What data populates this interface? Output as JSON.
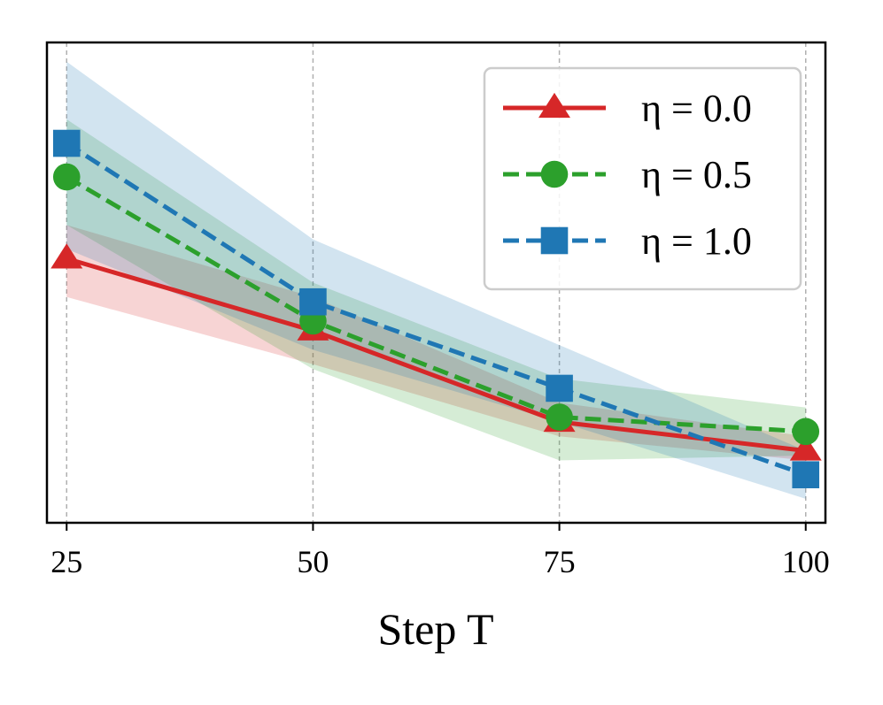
{
  "chart_data": {
    "type": "line",
    "title": "",
    "xlabel": "Step T",
    "ylabel": "",
    "x": [
      25,
      50,
      75,
      100
    ],
    "x_tick_labels": [
      "25",
      "50",
      "75",
      "100"
    ],
    "xlim": [
      23,
      102
    ],
    "ylim": [
      0,
      10
    ],
    "y_ticks_shown": false,
    "grid": "vertical-dashed",
    "legend_position": "upper-right",
    "series": [
      {
        "name": "η = 0.0",
        "color": "#d62728",
        "linestyle": "solid",
        "marker": "triangle",
        "values": [
          5.5,
          4.0,
          2.1,
          1.5
        ],
        "lower": [
          4.7,
          3.3,
          1.8,
          1.3
        ],
        "upper": [
          6.2,
          4.7,
          2.5,
          1.8
        ]
      },
      {
        "name": "η = 0.5",
        "color": "#2ca02c",
        "linestyle": "dashed",
        "marker": "circle",
        "values": [
          7.2,
          4.2,
          2.2,
          1.9
        ],
        "lower": [
          6.2,
          3.2,
          1.3,
          1.4
        ],
        "upper": [
          8.4,
          5.0,
          3.0,
          2.4
        ]
      },
      {
        "name": "η = 1.0",
        "color": "#1f77b4",
        "linestyle": "dashed",
        "marker": "square",
        "values": [
          7.9,
          4.6,
          2.8,
          1.0
        ],
        "lower": [
          5.7,
          3.6,
          2.1,
          0.5
        ],
        "upper": [
          9.6,
          5.9,
          3.7,
          1.5
        ]
      }
    ]
  }
}
